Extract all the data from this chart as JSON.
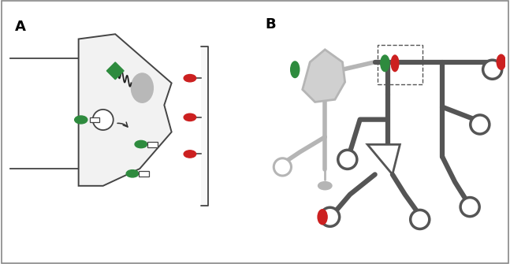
{
  "bg_color": "#ffffff",
  "green": "#2e8b3e",
  "red": "#cc2020",
  "dark_gray": "#555555",
  "light_gray": "#b0b0b0",
  "neuron_fill": "#f0f0f0",
  "gray_blob": "#aaaaaa",
  "panel_A": "A",
  "panel_B": "B"
}
